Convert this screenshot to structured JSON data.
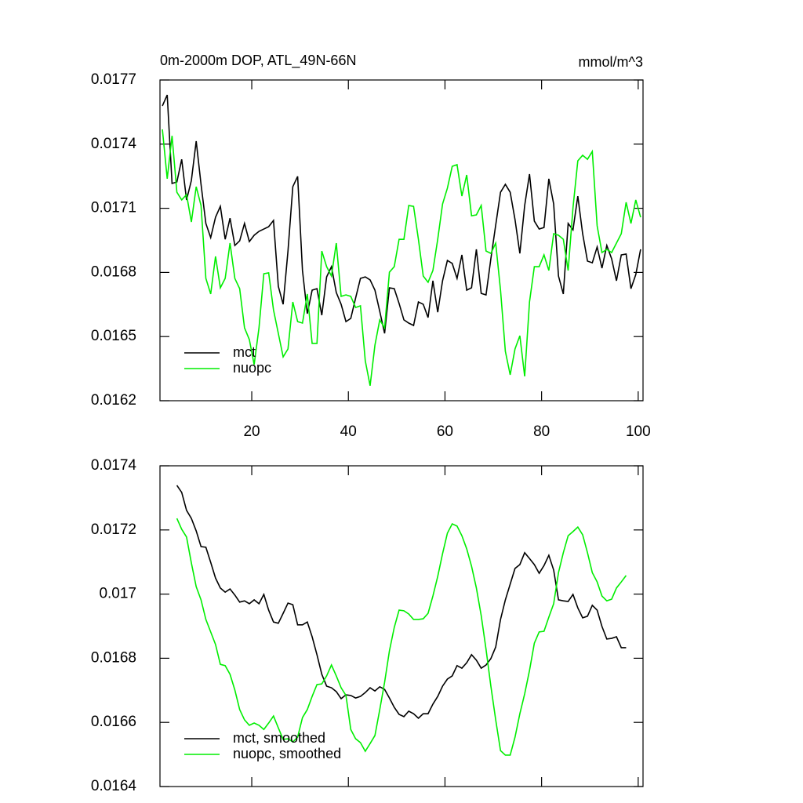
{
  "chart_data": [
    {
      "type": "line",
      "title": "0m-2000m DOP, ATL_49N-66N",
      "units_label": "mmol/m^3",
      "x": [
        1.5,
        2.5,
        3.5,
        4.5,
        5.5,
        6.5,
        7.5,
        8.5,
        9.5,
        10.5,
        11.5,
        12.5,
        13.5,
        14.5,
        15.5,
        16.5,
        17.5,
        18.5,
        19.5,
        20.5,
        21.5,
        22.5,
        23.5,
        24.5,
        25.5,
        26.5,
        27.5,
        28.5,
        29.5,
        30.5,
        31.5,
        32.5,
        33.5,
        34.5,
        35.5,
        36.5,
        37.5,
        38.5,
        39.5,
        40.5,
        41.5,
        42.5,
        43.5,
        44.5,
        45.5,
        46.5,
        47.5,
        48.5,
        49.5,
        50.5,
        51.5,
        52.5,
        53.5,
        54.5,
        55.5,
        56.5,
        57.5,
        58.5,
        59.5,
        60.5,
        61.5,
        62.5,
        63.5,
        64.5,
        65.5,
        66.5,
        67.5,
        68.5,
        69.5,
        70.5,
        71.5,
        72.5,
        73.5,
        74.5,
        75.5,
        76.5,
        77.5,
        78.5,
        79.5,
        80.5,
        81.5,
        82.5,
        83.5,
        84.5,
        85.5,
        86.5,
        87.5,
        88.5,
        89.5,
        90.5,
        91.5,
        92.5,
        93.5,
        94.5,
        95.5,
        96.5,
        97.5,
        98.5,
        99.5,
        100.5
      ],
      "series": [
        {
          "name": "mct",
          "color": "#000000",
          "values": [
            0.017579,
            0.01763,
            0.017216,
            0.017223,
            0.017329,
            0.017139,
            0.01723,
            0.017414,
            0.017212,
            0.017029,
            0.016963,
            0.017058,
            0.017109,
            0.016955,
            0.017054,
            0.016926,
            0.016948,
            0.017029,
            0.016944,
            0.016974,
            0.016992,
            0.017003,
            0.017014,
            0.017043,
            0.016735,
            0.016651,
            0.0169,
            0.017201,
            0.017249,
            0.016809,
            0.016607,
            0.016717,
            0.016724,
            0.0166,
            0.016779,
            0.016827,
            0.016706,
            0.016651,
            0.01657,
            0.016585,
            0.01668,
            0.016772,
            0.016779,
            0.016765,
            0.016717,
            0.016618,
            0.016515,
            0.016728,
            0.016724,
            0.016655,
            0.016578,
            0.016563,
            0.016552,
            0.016662,
            0.016651,
            0.016589,
            0.016761,
            0.016614,
            0.016761,
            0.016856,
            0.016842,
            0.016772,
            0.016882,
            0.016717,
            0.016728,
            0.016908,
            0.016702,
            0.016695,
            0.016864,
            0.017021,
            0.017175,
            0.017212,
            0.017175,
            0.017047,
            0.016889,
            0.017113,
            0.01726,
            0.01704,
            0.017003,
            0.01701,
            0.017238,
            0.01712,
            0.016783,
            0.016699,
            0.017029,
            0.016999,
            0.017157,
            0.016981,
            0.016853,
            0.016845,
            0.016919,
            0.01682,
            0.016926,
            0.016864,
            0.016761,
            0.016882,
            0.016886,
            0.016724,
            0.01679,
            0.016908
          ]
        },
        {
          "name": "nuopc",
          "color": "#00ee00",
          "values": [
            0.017469,
            0.017238,
            0.017439,
            0.017175,
            0.017139,
            0.017164,
            0.017036,
            0.017201,
            0.017113,
            0.016772,
            0.016699,
            0.016875,
            0.016728,
            0.016772,
            0.016937,
            0.016772,
            0.016724,
            0.016541,
            0.016486,
            0.016369,
            0.016541,
            0.016794,
            0.016798,
            0.016625,
            0.016515,
            0.016405,
            0.016442,
            0.016662,
            0.01657,
            0.016563,
            0.016699,
            0.016468,
            0.016468,
            0.0169,
            0.016827,
            0.016783,
            0.016937,
            0.016688,
            0.016695,
            0.016688,
            0.016636,
            0.016644,
            0.016387,
            0.01627,
            0.01646,
            0.016578,
            0.016541,
            0.016801,
            0.016827,
            0.016955,
            0.016955,
            0.017113,
            0.017109,
            0.016955,
            0.016783,
            0.016754,
            0.016809,
            0.016955,
            0.01712,
            0.017194,
            0.017296,
            0.017304,
            0.017157,
            0.017256,
            0.017065,
            0.017069,
            0.017113,
            0.0169,
            0.016889,
            0.016937,
            0.016717,
            0.016431,
            0.016321,
            0.016442,
            0.016504,
            0.016314,
            0.016662,
            0.016827,
            0.016827,
            0.016882,
            0.016809,
            0.016981,
            0.016974,
            0.016955,
            0.016809,
            0.017102,
            0.017322,
            0.017348,
            0.017329,
            0.017366,
            0.017018,
            0.016893,
            0.016908,
            0.016893,
            0.016937,
            0.016981,
            0.017128,
            0.017029,
            0.017139,
            0.017058
          ]
        }
      ],
      "xlim": [
        1,
        101
      ],
      "ylim": [
        0.0162,
        0.0177
      ],
      "xticks": [
        20,
        40,
        60,
        80,
        100
      ],
      "xtick_labels": true,
      "yticks": [
        0.0162,
        0.0165,
        0.0168,
        0.0171,
        0.0174,
        0.0177
      ],
      "legend": "lower left"
    },
    {
      "type": "line",
      "x": [
        4.5,
        5.5,
        6.5,
        7.5,
        8.5,
        9.5,
        10.5,
        11.5,
        12.5,
        13.5,
        14.5,
        15.5,
        16.5,
        17.5,
        18.5,
        19.5,
        20.5,
        21.5,
        22.5,
        23.5,
        24.5,
        25.5,
        26.5,
        27.5,
        28.5,
        29.5,
        30.5,
        31.5,
        32.5,
        33.5,
        34.5,
        35.5,
        36.5,
        37.5,
        38.5,
        39.5,
        40.5,
        41.5,
        42.5,
        43.5,
        44.5,
        45.5,
        46.5,
        47.5,
        48.5,
        49.5,
        50.5,
        51.5,
        52.5,
        53.5,
        54.5,
        55.5,
        56.5,
        57.5,
        58.5,
        59.5,
        60.5,
        61.5,
        62.5,
        63.5,
        64.5,
        65.5,
        66.5,
        67.5,
        68.5,
        69.5,
        70.5,
        71.5,
        72.5,
        73.5,
        74.5,
        75.5,
        76.5,
        77.5,
        78.5,
        79.5,
        80.5,
        81.5,
        82.5,
        83.5,
        84.5,
        85.5,
        86.5,
        87.5,
        88.5,
        89.5,
        90.5,
        91.5,
        92.5,
        93.5,
        94.5,
        95.5,
        96.5,
        97.5
      ],
      "series": [
        {
          "name": "mct, smoothed",
          "color": "#000000",
          "values": [
            0.017339,
            0.017317,
            0.017261,
            0.017236,
            0.017197,
            0.017148,
            0.017146,
            0.017099,
            0.01705,
            0.017019,
            0.017006,
            0.017016,
            0.016997,
            0.016975,
            0.016979,
            0.01697,
            0.016982,
            0.01697,
            0.016999,
            0.01695,
            0.016913,
            0.016909,
            0.01694,
            0.016972,
            0.016967,
            0.016904,
            0.016904,
            0.016913,
            0.016867,
            0.016811,
            0.01675,
            0.016713,
            0.016708,
            0.016696,
            0.016674,
            0.016686,
            0.016684,
            0.016676,
            0.016681,
            0.016693,
            0.016708,
            0.016698,
            0.016711,
            0.016703,
            0.016676,
            0.016647,
            0.016625,
            0.016618,
            0.016635,
            0.016627,
            0.016613,
            0.016627,
            0.016627,
            0.016657,
            0.016681,
            0.016713,
            0.016735,
            0.016745,
            0.016777,
            0.016769,
            0.016786,
            0.016811,
            0.016794,
            0.016769,
            0.016779,
            0.016799,
            0.016835,
            0.016921,
            0.016982,
            0.017031,
            0.01708,
            0.017092,
            0.017129,
            0.017111,
            0.017092,
            0.017065,
            0.017089,
            0.017121,
            0.017075,
            0.016982,
            0.016979,
            0.016977,
            0.016999,
            0.016957,
            0.016926,
            0.016931,
            0.016965,
            0.01695,
            0.016899,
            0.01686,
            0.016862,
            0.016867,
            0.016833,
            0.016833
          ]
        },
        {
          "name": "nuopc, smoothed",
          "color": "#00ee00",
          "values": [
            0.017236,
            0.017202,
            0.017178,
            0.017097,
            0.017023,
            0.016982,
            0.016921,
            0.016882,
            0.016843,
            0.016781,
            0.016777,
            0.01675,
            0.016701,
            0.01664,
            0.016608,
            0.016591,
            0.016598,
            0.016591,
            0.016578,
            0.016598,
            0.01662,
            0.016583,
            0.016547,
            0.016549,
            0.016539,
            0.016554,
            0.016615,
            0.01664,
            0.016681,
            0.016718,
            0.01672,
            0.016745,
            0.016779,
            0.016745,
            0.016708,
            0.016684,
            0.016578,
            0.016549,
            0.016537,
            0.01651,
            0.016534,
            0.016559,
            0.01664,
            0.016725,
            0.016823,
            0.016896,
            0.01695,
            0.016948,
            0.016938,
            0.016921,
            0.016921,
            0.016923,
            0.01694,
            0.016994,
            0.017055,
            0.017126,
            0.01719,
            0.017219,
            0.017212,
            0.017182,
            0.017141,
            0.017087,
            0.017019,
            0.016933,
            0.016828,
            0.016713,
            0.016608,
            0.016512,
            0.016498,
            0.016498,
            0.016554,
            0.016627,
            0.016689,
            0.016762,
            0.016847,
            0.016882,
            0.016884,
            0.016928,
            0.01697,
            0.017067,
            0.017129,
            0.017182,
            0.017195,
            0.017209,
            0.017185,
            0.017129,
            0.017067,
            0.017038,
            0.016994,
            0.016979,
            0.016984,
            0.017019,
            0.017038,
            0.017058
          ]
        }
      ],
      "xlim": [
        1,
        101
      ],
      "ylim": [
        0.0164,
        0.0174
      ],
      "xticks": [
        20,
        40,
        60,
        80,
        100
      ],
      "xtick_labels": false,
      "yticks": [
        0.0164,
        0.0166,
        0.0168,
        0.017,
        0.0172,
        0.0174
      ],
      "legend": "lower left"
    }
  ]
}
